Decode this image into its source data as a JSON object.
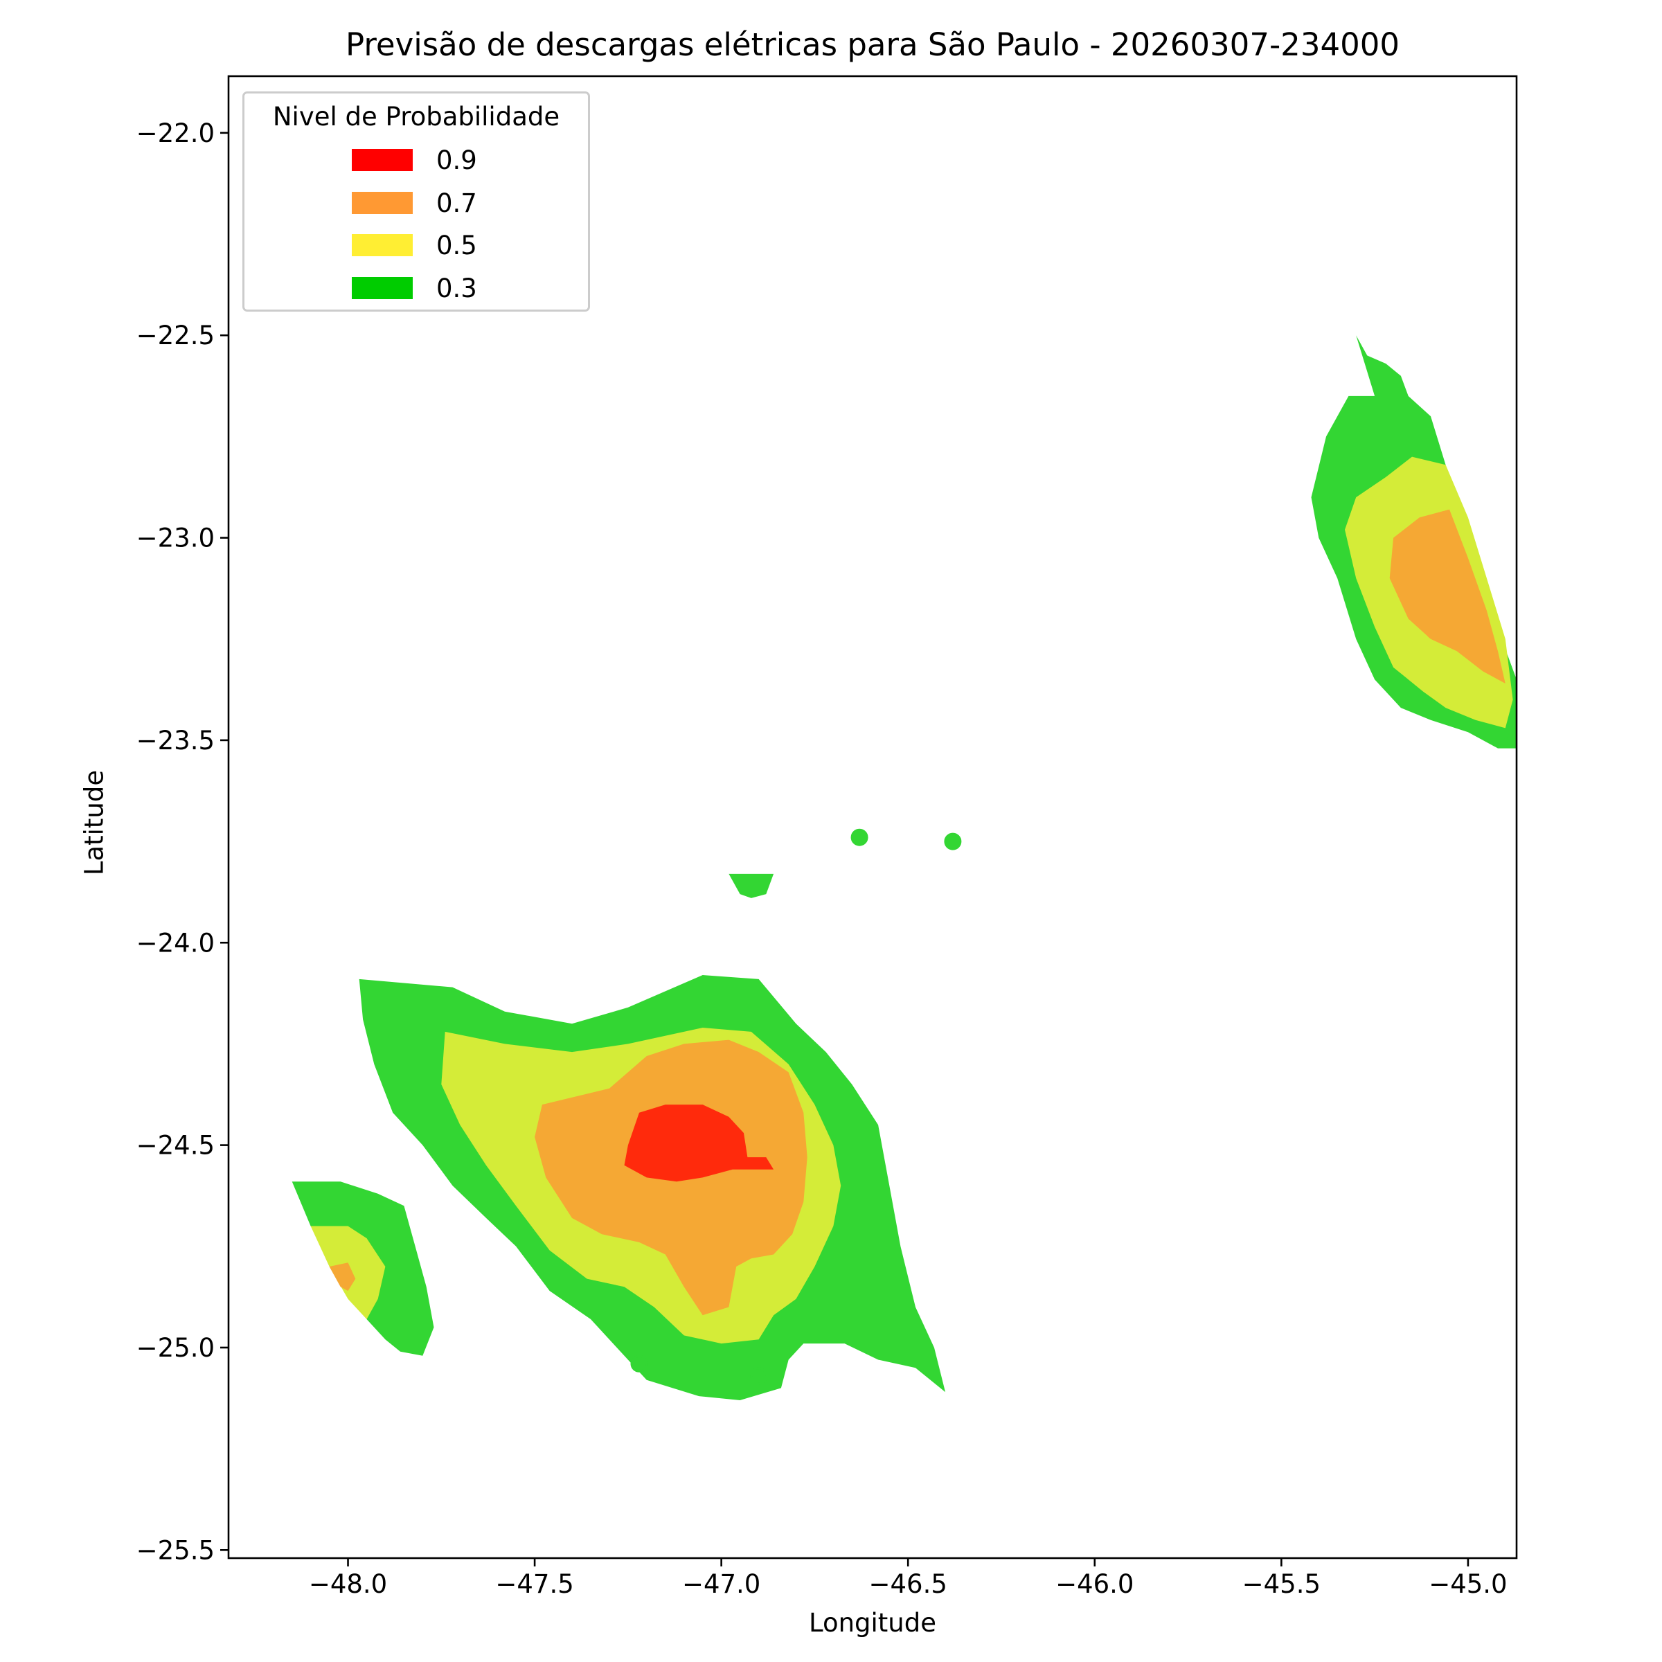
{
  "chart_data": {
    "type": "heatmap",
    "title": "Previsão de descargas elétricas para São Paulo - 20260307-234000",
    "xlabel": "Longitude",
    "ylabel": "Latitude",
    "xlim": [
      -48.32,
      -44.87
    ],
    "ylim": [
      -25.52,
      -21.86
    ],
    "x_ticks": [
      -48.0,
      -47.5,
      -47.0,
      -46.5,
      -46.0,
      -45.5,
      -45.0
    ],
    "x_tick_labels": [
      "−48.0",
      "−47.5",
      "−47.0",
      "−46.5",
      "−46.0",
      "−45.5",
      "−45.0"
    ],
    "y_ticks": [
      -22.0,
      -22.5,
      -23.0,
      -23.5,
      -24.0,
      -24.5,
      -25.0,
      -25.5
    ],
    "y_tick_labels": [
      "−22.0",
      "−22.5",
      "−23.0",
      "−23.5",
      "−24.0",
      "−24.5",
      "−25.0",
      "−25.5"
    ],
    "grid": false,
    "legend": {
      "title": "Nivel de Probabilidade",
      "placement": "top-left",
      "entries": [
        {
          "label": "0.9",
          "color": "#ff0000"
        },
        {
          "label": "0.7",
          "color": "#ff9933"
        },
        {
          "label": "0.5",
          "color": "#ffee33"
        },
        {
          "label": "0.3",
          "color": "#00cc00"
        }
      ]
    },
    "fill_colors": {
      "0.3": "#33d633",
      "0.5": "#d4ec38",
      "0.7": "#f5a834",
      "0.9": "#ff2a0c"
    },
    "regions": [
      {
        "name": "sw-cell",
        "levels": {
          "0.3": [
            [
              -47.97,
              -24.09
            ],
            [
              -47.72,
              -24.11
            ],
            [
              -47.58,
              -24.17
            ],
            [
              -47.4,
              -24.2
            ],
            [
              -47.25,
              -24.16
            ],
            [
              -47.05,
              -24.08
            ],
            [
              -46.9,
              -24.09
            ],
            [
              -46.8,
              -24.2
            ],
            [
              -46.72,
              -24.27
            ],
            [
              -46.65,
              -24.35
            ],
            [
              -46.58,
              -24.45
            ],
            [
              -46.55,
              -24.6
            ],
            [
              -46.52,
              -24.75
            ],
            [
              -46.48,
              -24.9
            ],
            [
              -46.43,
              -25.0
            ],
            [
              -46.4,
              -25.11
            ],
            [
              -46.48,
              -25.05
            ],
            [
              -46.58,
              -25.03
            ],
            [
              -46.67,
              -24.99
            ],
            [
              -46.78,
              -24.99
            ],
            [
              -46.82,
              -25.03
            ],
            [
              -46.84,
              -25.1
            ],
            [
              -46.95,
              -25.13
            ],
            [
              -47.06,
              -25.12
            ],
            [
              -47.2,
              -25.08
            ],
            [
              -47.28,
              -25.0
            ],
            [
              -47.35,
              -24.93
            ],
            [
              -47.46,
              -24.86
            ],
            [
              -47.55,
              -24.75
            ],
            [
              -47.63,
              -24.68
            ],
            [
              -47.72,
              -24.6
            ],
            [
              -47.8,
              -24.5
            ],
            [
              -47.88,
              -24.42
            ],
            [
              -47.93,
              -24.3
            ],
            [
              -47.96,
              -24.19
            ]
          ],
          "0.5": [
            [
              -47.74,
              -24.22
            ],
            [
              -47.58,
              -24.25
            ],
            [
              -47.4,
              -24.27
            ],
            [
              -47.25,
              -24.25
            ],
            [
              -47.05,
              -24.21
            ],
            [
              -46.92,
              -24.22
            ],
            [
              -46.82,
              -24.3
            ],
            [
              -46.75,
              -24.4
            ],
            [
              -46.7,
              -24.5
            ],
            [
              -46.68,
              -24.6
            ],
            [
              -46.7,
              -24.7
            ],
            [
              -46.75,
              -24.8
            ],
            [
              -46.8,
              -24.88
            ],
            [
              -46.86,
              -24.92
            ],
            [
              -46.9,
              -24.98
            ],
            [
              -47.0,
              -24.99
            ],
            [
              -47.1,
              -24.97
            ],
            [
              -47.18,
              -24.9
            ],
            [
              -47.26,
              -24.85
            ],
            [
              -47.36,
              -24.83
            ],
            [
              -47.46,
              -24.76
            ],
            [
              -47.55,
              -24.65
            ],
            [
              -47.63,
              -24.55
            ],
            [
              -47.7,
              -24.45
            ],
            [
              -47.75,
              -24.35
            ]
          ],
          "0.7": [
            [
              -47.48,
              -24.4
            ],
            [
              -47.3,
              -24.36
            ],
            [
              -47.2,
              -24.28
            ],
            [
              -47.1,
              -24.25
            ],
            [
              -46.98,
              -24.24
            ],
            [
              -46.9,
              -24.27
            ],
            [
              -46.82,
              -24.32
            ],
            [
              -46.78,
              -24.42
            ],
            [
              -46.77,
              -24.53
            ],
            [
              -46.78,
              -24.64
            ],
            [
              -46.81,
              -24.72
            ],
            [
              -46.86,
              -24.77
            ],
            [
              -46.92,
              -24.78
            ],
            [
              -46.96,
              -24.8
            ],
            [
              -46.98,
              -24.9
            ],
            [
              -47.05,
              -24.92
            ],
            [
              -47.1,
              -24.85
            ],
            [
              -47.15,
              -24.77
            ],
            [
              -47.22,
              -24.74
            ],
            [
              -47.32,
              -24.72
            ],
            [
              -47.4,
              -24.68
            ],
            [
              -47.47,
              -24.58
            ],
            [
              -47.5,
              -24.48
            ]
          ],
          "0.9": [
            [
              -47.25,
              -24.5
            ],
            [
              -47.22,
              -24.42
            ],
            [
              -47.15,
              -24.4
            ],
            [
              -47.05,
              -24.4
            ],
            [
              -46.98,
              -24.43
            ],
            [
              -46.94,
              -24.47
            ],
            [
              -46.93,
              -24.53
            ],
            [
              -46.88,
              -24.53
            ],
            [
              -46.86,
              -24.56
            ],
            [
              -46.97,
              -24.56
            ],
            [
              -47.05,
              -24.58
            ],
            [
              -47.12,
              -24.59
            ],
            [
              -47.2,
              -24.58
            ],
            [
              -47.26,
              -24.55
            ]
          ]
        }
      },
      {
        "name": "west-cell",
        "levels": {
          "0.3": [
            [
              -48.15,
              -24.59
            ],
            [
              -48.02,
              -24.59
            ],
            [
              -47.92,
              -24.62
            ],
            [
              -47.85,
              -24.65
            ],
            [
              -47.82,
              -24.75
            ],
            [
              -47.79,
              -24.85
            ],
            [
              -47.77,
              -24.95
            ],
            [
              -47.8,
              -25.02
            ],
            [
              -47.86,
              -25.01
            ],
            [
              -47.9,
              -24.98
            ],
            [
              -47.95,
              -24.93
            ],
            [
              -48.0,
              -24.86
            ],
            [
              -48.05,
              -24.78
            ],
            [
              -48.1,
              -24.7
            ]
          ],
          "0.5": [
            [
              -48.1,
              -24.7
            ],
            [
              -48.0,
              -24.7
            ],
            [
              -47.95,
              -24.73
            ],
            [
              -47.9,
              -24.8
            ],
            [
              -47.92,
              -24.88
            ],
            [
              -47.95,
              -24.93
            ],
            [
              -48.0,
              -24.88
            ],
            [
              -48.05,
              -24.8
            ]
          ],
          "0.7": [
            [
              -48.05,
              -24.8
            ],
            [
              -48.0,
              -24.79
            ],
            [
              -47.98,
              -24.83
            ],
            [
              -48.0,
              -24.86
            ],
            [
              -48.02,
              -24.85
            ]
          ]
        }
      },
      {
        "name": "ne-cell",
        "levels": {
          "0.3": [
            [
              -45.3,
              -22.5
            ],
            [
              -45.25,
              -22.65
            ],
            [
              -45.32,
              -22.65
            ],
            [
              -45.38,
              -22.75
            ],
            [
              -45.42,
              -22.9
            ],
            [
              -45.4,
              -23.0
            ],
            [
              -45.35,
              -23.1
            ],
            [
              -45.3,
              -23.25
            ],
            [
              -45.25,
              -23.35
            ],
            [
              -45.18,
              -23.42
            ],
            [
              -45.1,
              -23.45
            ],
            [
              -45.0,
              -23.48
            ],
            [
              -44.92,
              -23.52
            ],
            [
              -44.87,
              -23.52
            ],
            [
              -44.87,
              -23.35
            ],
            [
              -44.93,
              -23.2
            ],
            [
              -45.0,
              -23.0
            ],
            [
              -45.05,
              -22.85
            ],
            [
              -45.1,
              -22.7
            ],
            [
              -45.16,
              -22.65
            ],
            [
              -45.18,
              -22.6
            ],
            [
              -45.22,
              -22.57
            ],
            [
              -45.27,
              -22.55
            ]
          ],
          "0.5": [
            [
              -45.3,
              -22.9
            ],
            [
              -45.22,
              -22.85
            ],
            [
              -45.15,
              -22.8
            ],
            [
              -45.06,
              -22.82
            ],
            [
              -45.0,
              -22.95
            ],
            [
              -44.95,
              -23.1
            ],
            [
              -44.9,
              -23.25
            ],
            [
              -44.88,
              -23.4
            ],
            [
              -44.9,
              -23.47
            ],
            [
              -44.98,
              -23.45
            ],
            [
              -45.06,
              -23.42
            ],
            [
              -45.12,
              -23.38
            ],
            [
              -45.2,
              -23.32
            ],
            [
              -45.25,
              -23.22
            ],
            [
              -45.3,
              -23.1
            ],
            [
              -45.33,
              -22.98
            ]
          ],
          "0.7": [
            [
              -45.2,
              -23.0
            ],
            [
              -45.13,
              -22.95
            ],
            [
              -45.05,
              -22.93
            ],
            [
              -45.0,
              -23.05
            ],
            [
              -44.95,
              -23.18
            ],
            [
              -44.92,
              -23.28
            ],
            [
              -44.9,
              -23.36
            ],
            [
              -44.96,
              -23.33
            ],
            [
              -45.03,
              -23.28
            ],
            [
              -45.1,
              -23.25
            ],
            [
              -45.16,
              -23.2
            ],
            [
              -45.21,
              -23.1
            ]
          ]
        }
      },
      {
        "name": "center-blob",
        "levels": {
          "0.3": [
            [
              -46.98,
              -23.83
            ],
            [
              -46.86,
              -23.83
            ],
            [
              -46.88,
              -23.88
            ],
            [
              -46.92,
              -23.89
            ],
            [
              -46.95,
              -23.88
            ]
          ]
        }
      }
    ],
    "points": [
      {
        "x": -46.63,
        "y": -23.74,
        "level": "0.3"
      },
      {
        "x": -46.38,
        "y": -23.75,
        "level": "0.3"
      },
      {
        "x": -47.22,
        "y": -25.04,
        "level": "0.3"
      },
      {
        "x": -46.9,
        "y": -25.07,
        "level": "0.3"
      },
      {
        "x": -45.09,
        "y": -23.23,
        "level": "0.7"
      }
    ]
  }
}
